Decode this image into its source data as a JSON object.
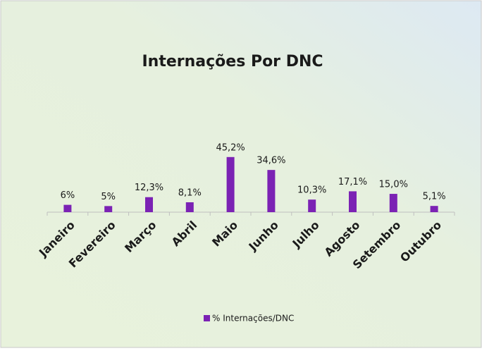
{
  "chart_data": {
    "type": "bar",
    "title": "Internações Por DNC",
    "categories": [
      "Janeiro",
      "Fevereiro",
      "Março",
      "Abril",
      "Maio",
      "Junho",
      "Julho",
      "Agosto",
      "Setembro",
      "Outubro"
    ],
    "series": [
      {
        "name": "% Internações/DNC",
        "color": "#7b22b4",
        "values": [
          6,
          5,
          12.3,
          8.1,
          45.2,
          34.6,
          10.3,
          17.1,
          15.0,
          5.1
        ],
        "value_labels": [
          "6%",
          "5%",
          "12,3%",
          "8,1%",
          "45,2%",
          "34,6%",
          "10,3%",
          "17,1%",
          "15,0%",
          "5,1%"
        ]
      }
    ],
    "legend": "bottom"
  }
}
